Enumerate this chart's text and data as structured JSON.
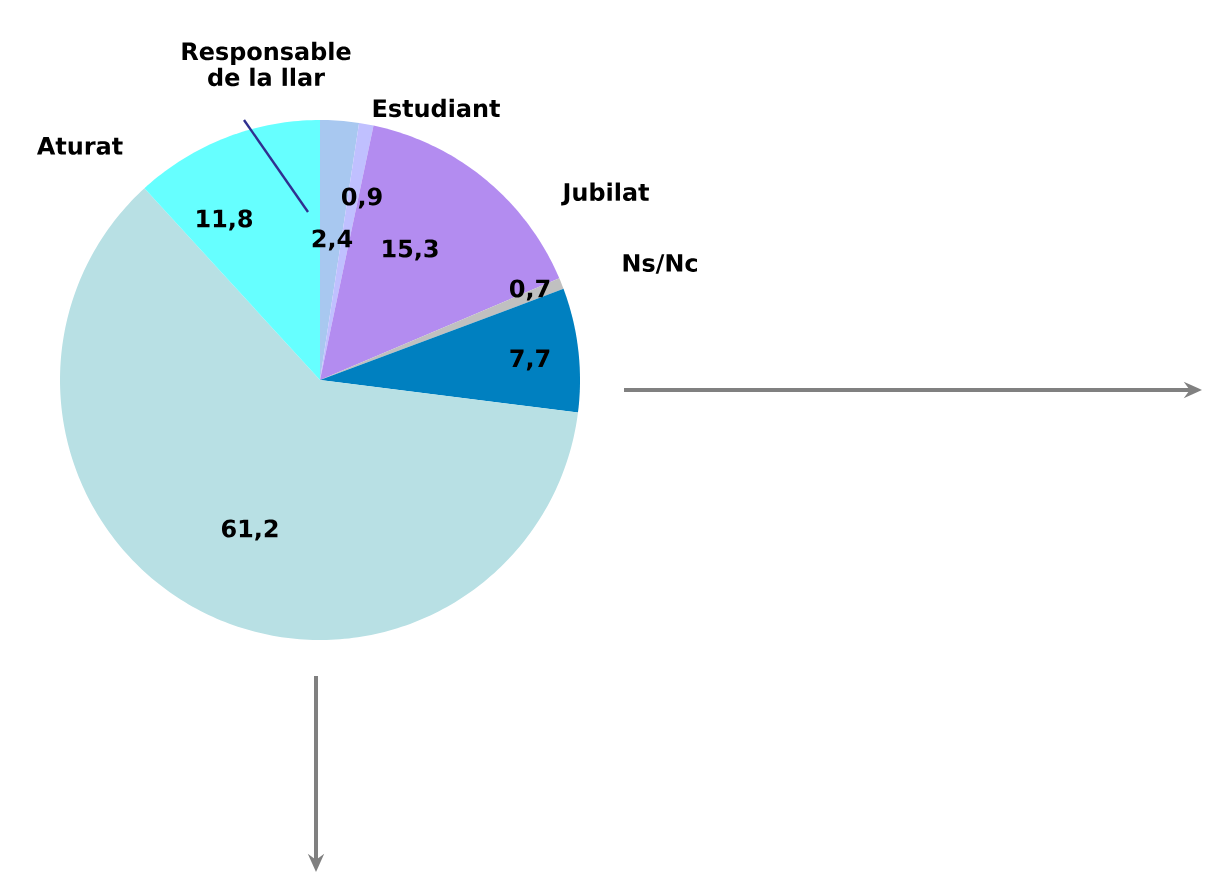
{
  "chart_data": {
    "type": "pie",
    "categories": [
      "Responsable de la llar",
      "Estudiant",
      "Jubilat",
      "Ns/Nc",
      null,
      null,
      "Aturat"
    ],
    "values": [
      2.4,
      0.9,
      15.3,
      0.7,
      7.7,
      61.2,
      11.8
    ],
    "colors": [
      "#a8c8f0",
      "#c0c0ff",
      "#b38cf0",
      "#c0c0c0",
      "#0080c0",
      "#b8e0e4",
      "#66ffff"
    ],
    "value_labels": [
      "2,4",
      "0,9",
      "15,3",
      "0,7",
      "7,7",
      "61,2",
      "11,8"
    ]
  }
}
